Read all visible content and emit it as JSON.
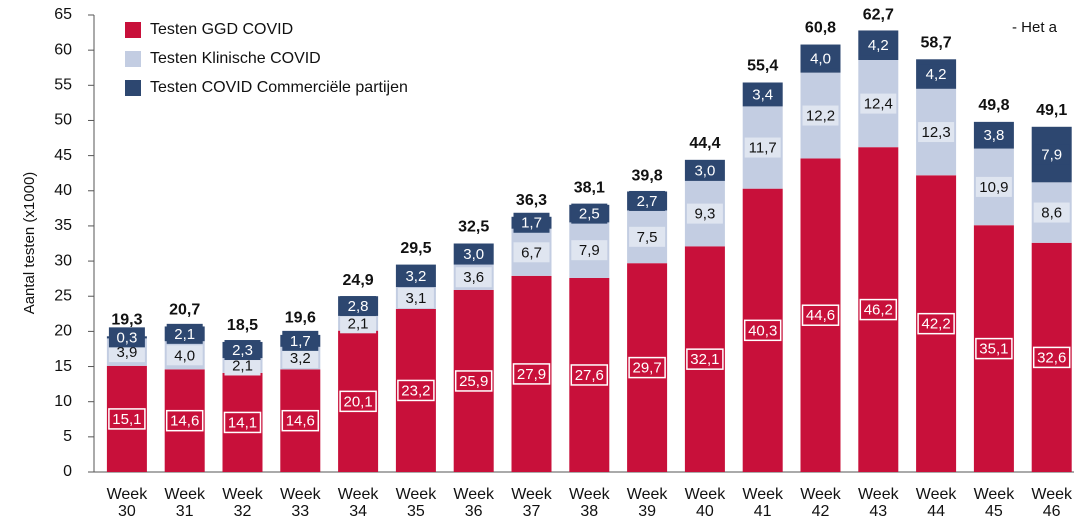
{
  "chart_data": {
    "type": "stacked_bar",
    "y_label": "Aantal testen (x1000)",
    "annotation": "- Het a",
    "categories": [
      "Week 30",
      "Week 31",
      "Week 32",
      "Week 33",
      "Week 34",
      "Week 35",
      "Week 36",
      "Week 37",
      "Week 38",
      "Week 39",
      "Week 40",
      "Week 41",
      "Week 42",
      "Week 43",
      "Week 44",
      "Week 45",
      "Week 46"
    ],
    "series": [
      {
        "name": "Testen GGD COVID",
        "color": "#c8103a",
        "values": [
          15.1,
          14.6,
          14.1,
          14.6,
          20.1,
          23.2,
          25.9,
          27.9,
          27.6,
          29.7,
          32.1,
          40.3,
          44.6,
          46.2,
          42.2,
          35.1,
          32.6
        ],
        "value_labels": [
          "15,1",
          "14,6",
          "14,1",
          "14,6",
          "20,1",
          "23,2",
          "25,9",
          "27,9",
          "27,6",
          "29,7",
          "32,1",
          "40,3",
          "44,6",
          "46,2",
          "42,2",
          "35,1",
          "32,6"
        ]
      },
      {
        "name": "Testen Klinische COVID",
        "color": "#c3cde2",
        "values": [
          3.9,
          4.0,
          2.1,
          3.2,
          2.1,
          3.1,
          3.6,
          6.7,
          7.9,
          7.5,
          9.3,
          11.7,
          12.2,
          12.4,
          12.3,
          10.9,
          8.6
        ],
        "value_labels": [
          "3,9",
          "4,0",
          "2,1",
          "3,2",
          "2,1",
          "3,1",
          "3,6",
          "6,7",
          "7,9",
          "7,5",
          "9,3",
          "11,7",
          "12,2",
          "12,4",
          "12,3",
          "10,9",
          "8,6"
        ]
      },
      {
        "name": "Testen COVID Commerciële partijen",
        "color": "#2d4770",
        "values": [
          0.3,
          2.1,
          2.3,
          1.7,
          2.8,
          3.2,
          3.0,
          1.7,
          2.5,
          2.7,
          3.0,
          3.4,
          4.0,
          4.2,
          4.2,
          3.8,
          7.9
        ],
        "value_labels": [
          "0,3",
          "2,1",
          "2,3",
          "1,7",
          "2,8",
          "3,2",
          "3,0",
          "1,7",
          "2,5",
          "2,7",
          "3,0",
          "3,4",
          "4,0",
          "4,2",
          "4,2",
          "3,8",
          "7,9"
        ]
      }
    ],
    "totals": [
      19.3,
      20.7,
      18.5,
      19.6,
      24.9,
      29.5,
      32.5,
      36.3,
      38.1,
      39.8,
      44.4,
      55.4,
      60.8,
      62.7,
      58.7,
      49.8,
      49.1
    ],
    "total_labels": [
      "19,3",
      "20,7",
      "18,5",
      "19,6",
      "24,9",
      "29,5",
      "32,5",
      "36,3",
      "38,1",
      "39,8",
      "44,4",
      "55,4",
      "60,8",
      "62,7",
      "58,7",
      "49,8",
      "49,1"
    ],
    "ylim": [
      0,
      65
    ],
    "yticks": [
      0,
      5,
      10,
      15,
      20,
      25,
      30,
      35,
      40,
      45,
      50,
      55,
      60,
      65
    ],
    "grid": false,
    "legend": "top-left"
  }
}
